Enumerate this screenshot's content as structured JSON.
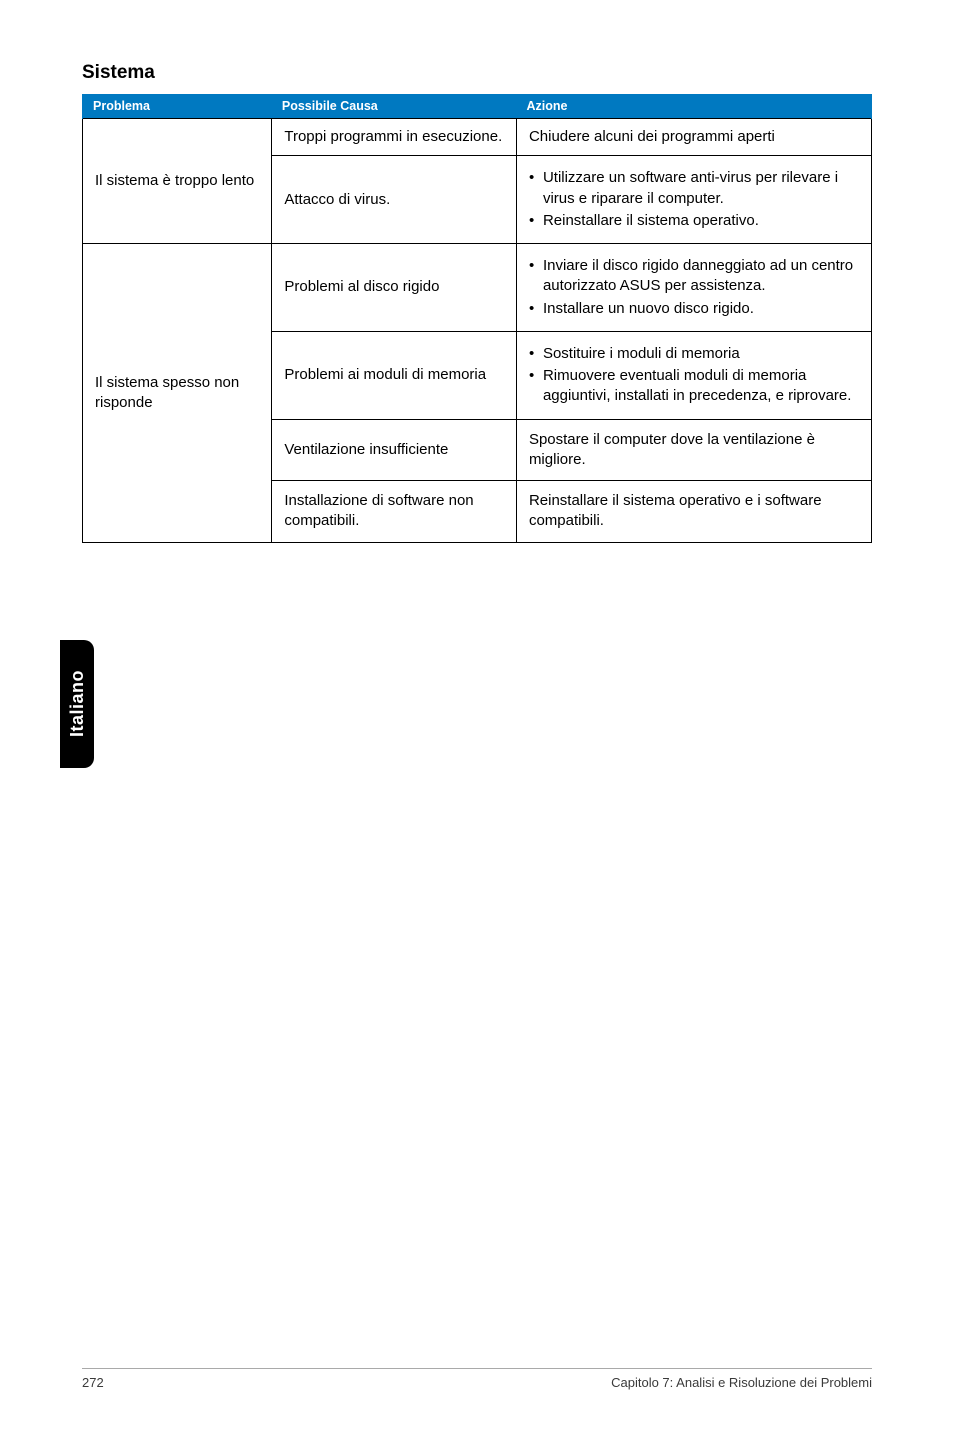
{
  "section_title": "Sistema",
  "headers": {
    "problema": "Problema",
    "causa": "Possibile Causa",
    "azione": "Azione"
  },
  "rows": {
    "slow": {
      "problema": "Il sistema è troppo lento",
      "r1": {
        "causa": "Troppi programmi in esecuzione.",
        "azione": "Chiudere alcuni dei programmi aperti"
      },
      "r2": {
        "causa": "Attacco di virus.",
        "azione1": "Utilizzare un software anti-virus per rilevare i virus e riparare il computer.",
        "azione2": "Reinstallare il sistema operativo."
      }
    },
    "noresp": {
      "problema": "Il sistema spesso non risponde",
      "r1": {
        "causa": "Problemi al disco rigido",
        "azione1": "Inviare il disco rigido danneggiato ad un centro autorizzato ASUS per assistenza.",
        "azione2": "Installare un nuovo disco rigido."
      },
      "r2": {
        "causa": "Problemi ai moduli di memoria",
        "azione1": "Sostituire i moduli di memoria",
        "azione2": "Rimuovere eventuali moduli di memoria aggiuntivi, installati in precedenza, e riprovare."
      },
      "r3": {
        "causa": "Ventilazione insufficiente",
        "azione": "Spostare il computer dove la ventilazione è migliore."
      },
      "r4": {
        "causa": "Installazione di software non compatibili.",
        "azione": "Reinstallare il sistema operativo e i software compatibili."
      }
    }
  },
  "side_tab": "Italiano",
  "footer": {
    "page": "272",
    "chapter": "Capitolo 7: Analisi e Risoluzione dei Problemi"
  }
}
